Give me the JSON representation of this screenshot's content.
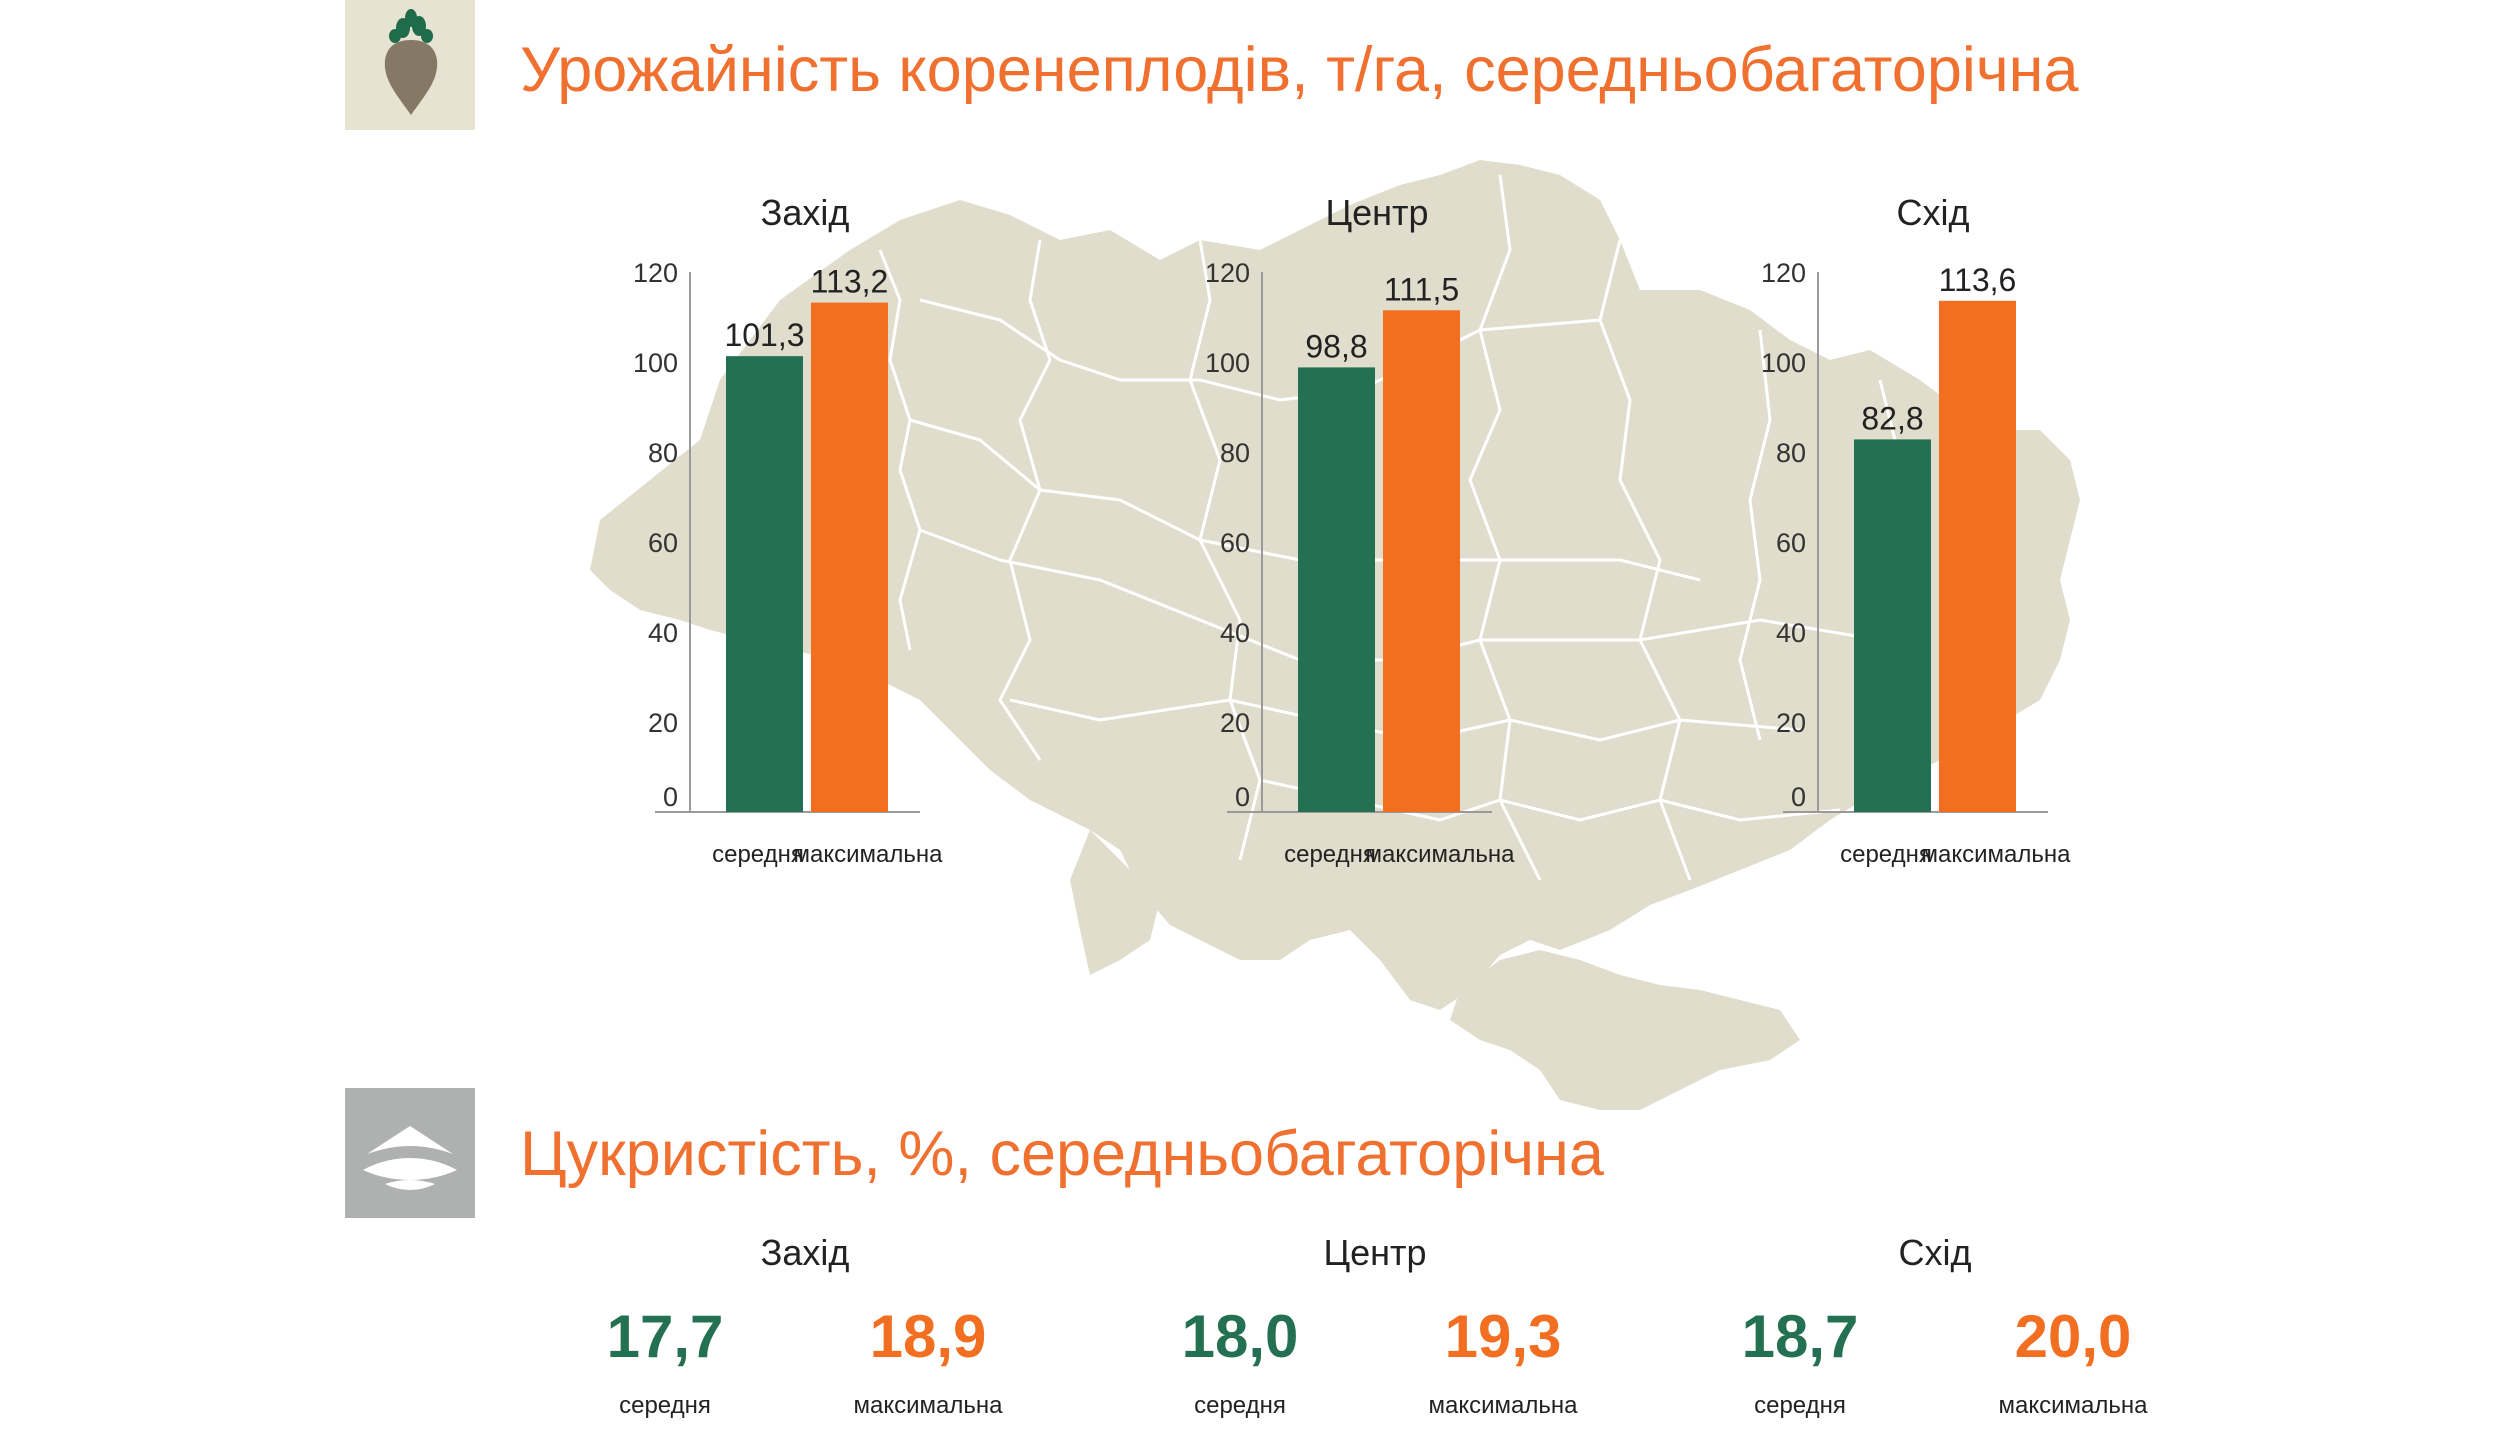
{
  "colors": {
    "accent": "#f07030",
    "green": "#247052",
    "orange": "#f26e21",
    "map": "#e0ddcc",
    "icon_bg_beet": "#e6e3d3",
    "icon_bg_sugar": "#aeb1b0",
    "beet_icon": "#857966"
  },
  "icons": {
    "yield": "sugar-beet-icon",
    "sugar": "sugar-pile-icon"
  },
  "yield_section": {
    "title": "Урожайність коренеплодів, т/га, середньобагаторічна"
  },
  "sugar_section": {
    "title": "Цукристість, %, середньобагаторічна",
    "regions": [
      {
        "name": "Захід",
        "average": "17,7",
        "maximum": "18,9",
        "average_label": "середня",
        "maximum_label": "максимальна"
      },
      {
        "name": "Центр",
        "average": "18,0",
        "maximum": "19,3",
        "average_label": "середня",
        "maximum_label": "максимальна"
      },
      {
        "name": "Схід",
        "average": "18,7",
        "maximum": "20,0",
        "average_label": "середня",
        "maximum_label": "максимальна"
      }
    ]
  },
  "chart_data": [
    {
      "type": "bar",
      "title": "Захід",
      "categories": [
        "середня",
        "максимальна"
      ],
      "values": [
        101.3,
        113.2
      ],
      "value_labels": [
        "101,3",
        "113,2"
      ],
      "yticks": [
        "0",
        "20",
        "40",
        "60",
        "80",
        "100",
        "120"
      ],
      "ylim": [
        0,
        120
      ],
      "grid": false
    },
    {
      "type": "bar",
      "title": "Центр",
      "categories": [
        "середня",
        "максимальна"
      ],
      "values": [
        98.8,
        111.5
      ],
      "value_labels": [
        "98,8",
        "111,5"
      ],
      "yticks": [
        "0",
        "20",
        "40",
        "60",
        "80",
        "100",
        "120"
      ],
      "ylim": [
        0,
        120
      ],
      "grid": false
    },
    {
      "type": "bar",
      "title": "Схід",
      "categories": [
        "середня",
        "максимальна"
      ],
      "values": [
        82.8,
        113.6
      ],
      "value_labels": [
        "82,8",
        "113,6"
      ],
      "yticks": [
        "0",
        "20",
        "40",
        "60",
        "80",
        "100",
        "120"
      ],
      "ylim": [
        0,
        120
      ],
      "grid": false
    }
  ]
}
